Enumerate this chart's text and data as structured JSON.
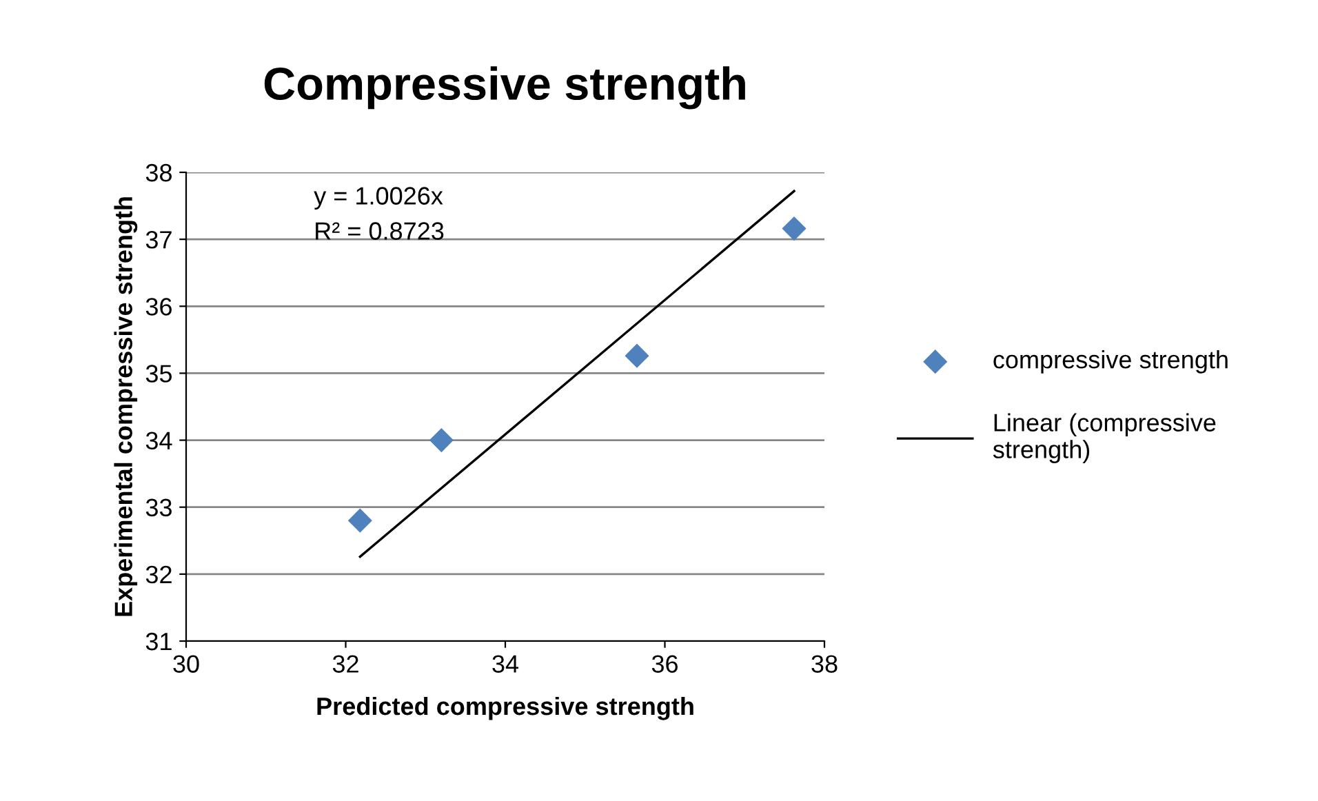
{
  "chart_data": {
    "type": "scatter",
    "title": "Compressive strength",
    "xlabel": "Predicted compressive strength",
    "ylabel": "Experimental compressive strength",
    "series": [
      {
        "name": "compressive strength",
        "color": "#4f81bd",
        "marker": "diamond",
        "x": [
          32.18,
          33.2,
          35.65,
          37.62
        ],
        "values": [
          32.8,
          34.0,
          35.26,
          37.16
        ]
      },
      {
        "name": "Linear (compressive strength)",
        "type": "line",
        "color": "#000000",
        "marker": "none",
        "line_style": "solid",
        "x": [
          32.18,
          37.62
        ],
        "values": [
          32.26,
          37.72
        ]
      }
    ],
    "annotations": [
      "y = 1.0026x",
      "R² = 0.8723"
    ],
    "xlim": [
      30,
      38
    ],
    "xticks": [
      30,
      32,
      34,
      36,
      38
    ],
    "ylim": [
      31,
      38
    ],
    "yticks": [
      31,
      32,
      33,
      34,
      35,
      36,
      37,
      38
    ],
    "grid": "y",
    "legend": "right"
  }
}
